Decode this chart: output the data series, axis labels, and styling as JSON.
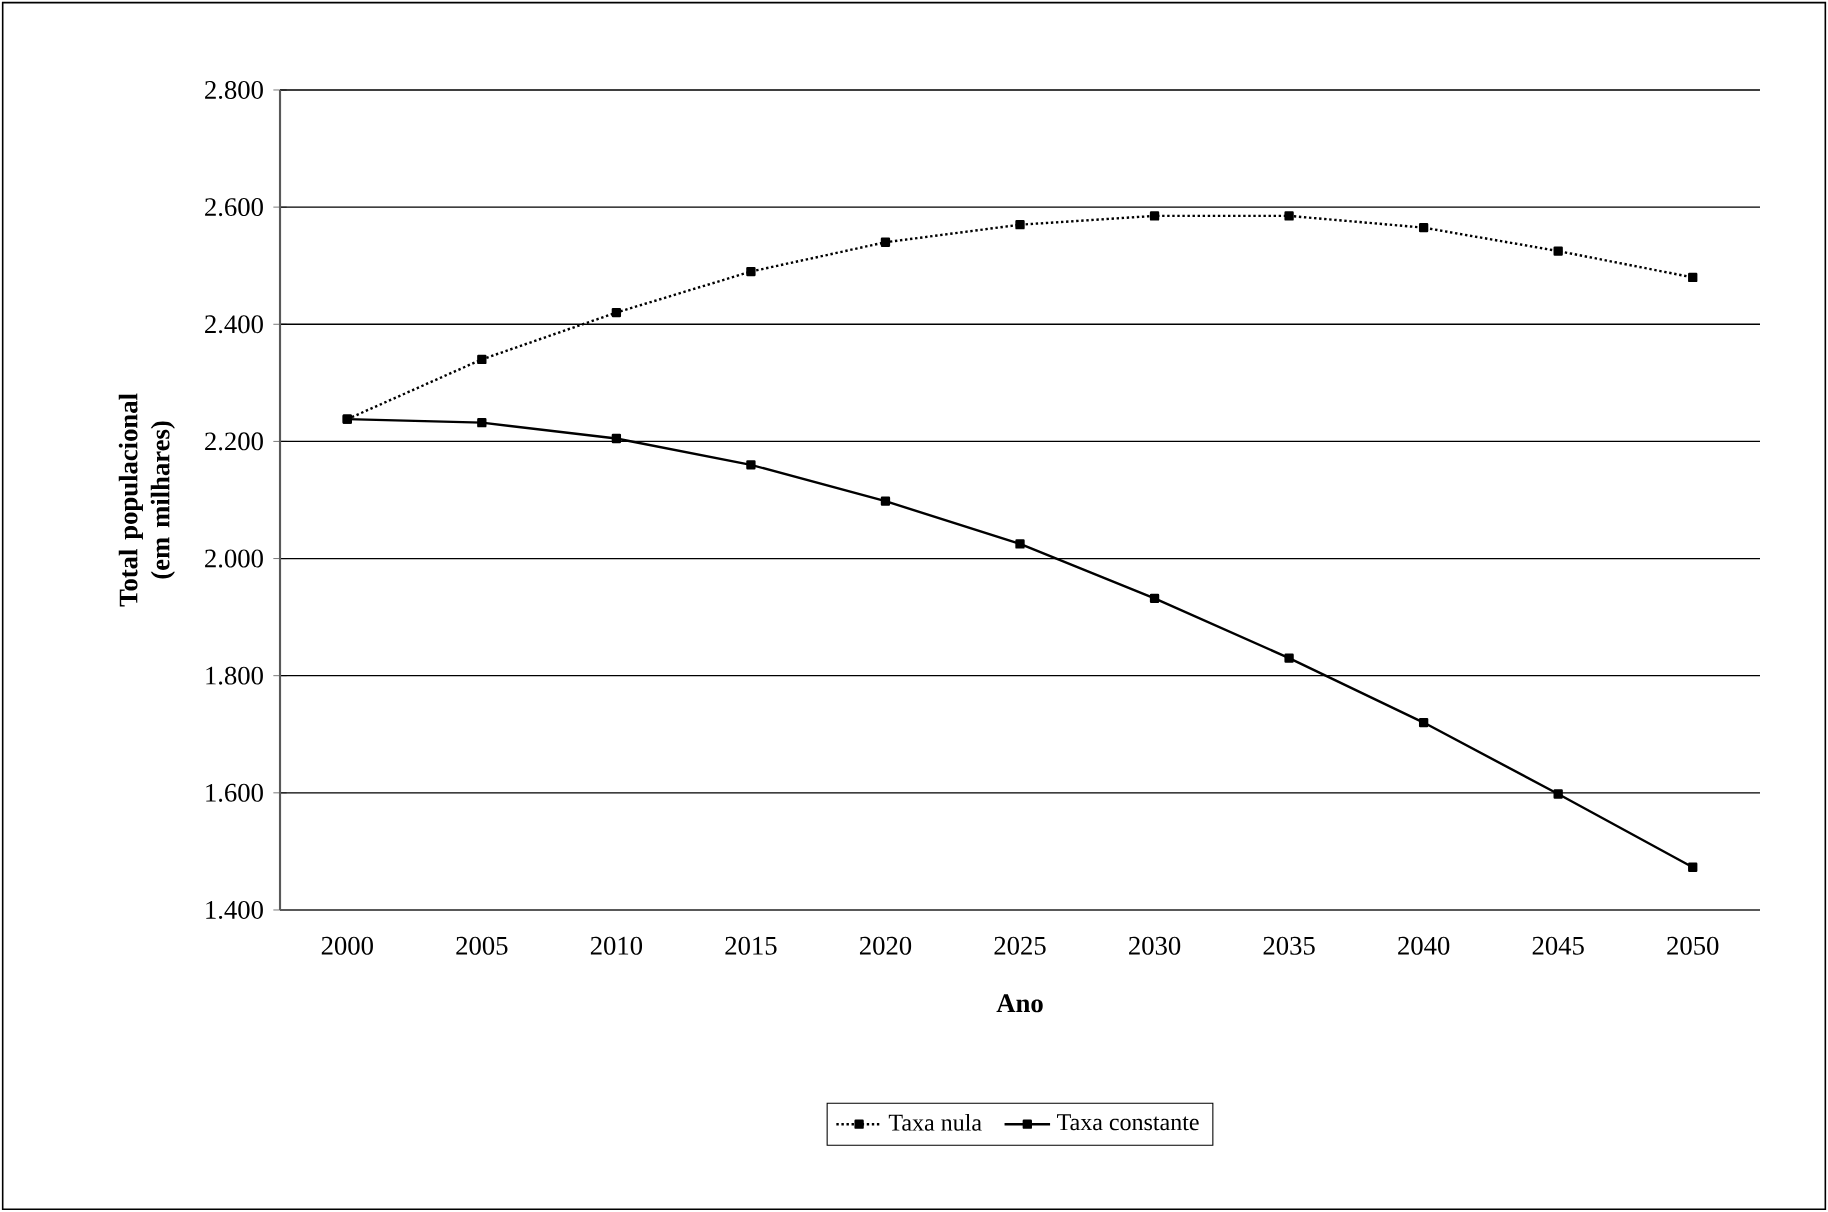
{
  "chart_data": {
    "type": "line",
    "xlabel": "Ano",
    "ylabel": "Total populacional (em milhares)",
    "categories": [
      "2000",
      "2005",
      "2010",
      "2015",
      "2020",
      "2025",
      "2030",
      "2035",
      "2040",
      "2045",
      "2050"
    ],
    "series": [
      {
        "name": "Taxa nula",
        "color": "#000000",
        "line_style": "dotted",
        "values": [
          2238,
          2340,
          2420,
          2490,
          2540,
          2570,
          2585,
          2585,
          2565,
          2525,
          2480
        ]
      },
      {
        "name": "Taxa constante",
        "color": "#000000",
        "line_style": "solid",
        "values": [
          2238,
          2232,
          2205,
          2160,
          2098,
          2025,
          1932,
          1830,
          1720,
          1598,
          1473
        ]
      }
    ],
    "ylim": [
      1400,
      2800
    ],
    "yticks": [
      {
        "value": 1400,
        "label": "1.400"
      },
      {
        "value": 1600,
        "label": "1.600"
      },
      {
        "value": 1800,
        "label": "1.800"
      },
      {
        "value": 2000,
        "label": "2.000"
      },
      {
        "value": 2200,
        "label": "2.200"
      },
      {
        "value": 2400,
        "label": "2.400"
      },
      {
        "value": 2600,
        "label": "2.600"
      },
      {
        "value": 2800,
        "label": "2.800"
      }
    ],
    "grid": "y",
    "legend": "bottom",
    "marker": "square"
  }
}
